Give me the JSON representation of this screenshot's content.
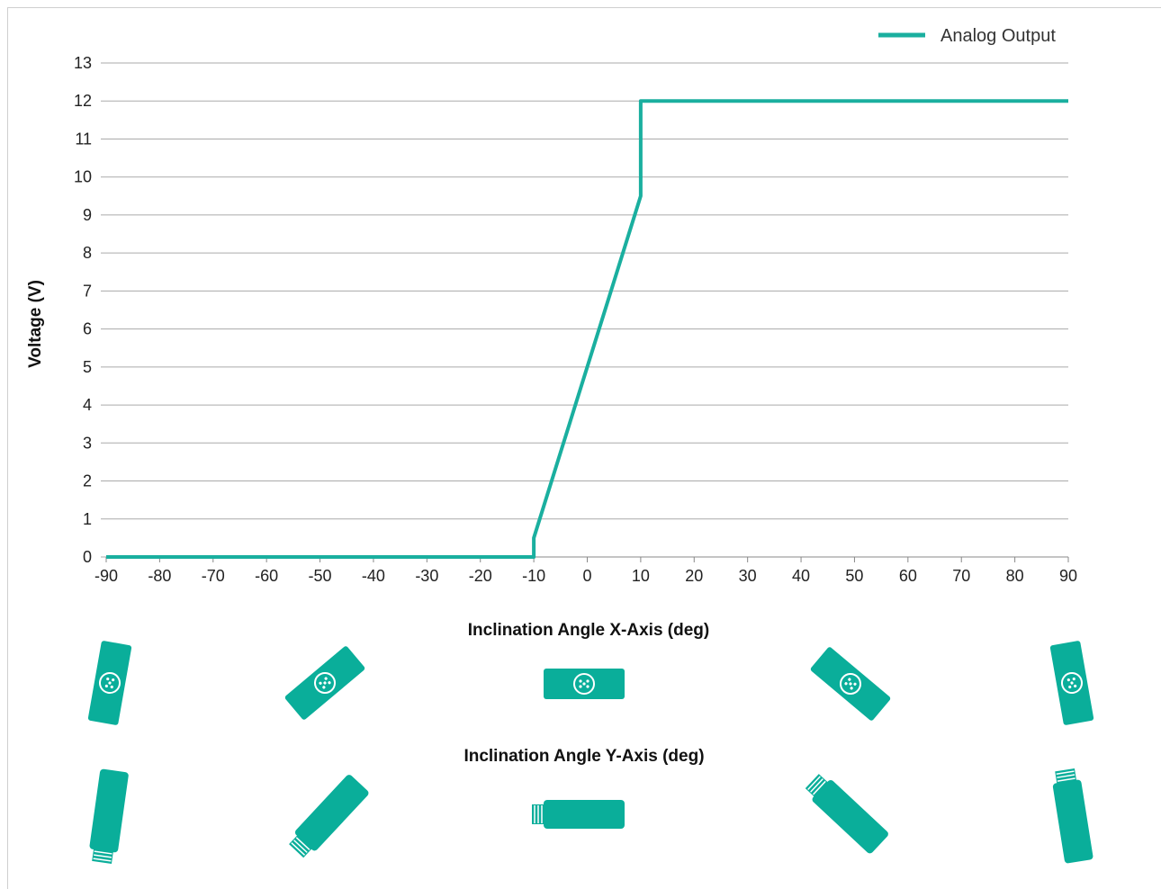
{
  "chart_data": {
    "type": "line",
    "xlabel": "Inclination Angle X-Axis (deg)",
    "x2label": "Inclination Angle Y-Axis (deg)",
    "ylabel": "Voltage (V)",
    "xlim": [
      -90,
      90
    ],
    "ylim": [
      0,
      13
    ],
    "xticks": [
      -90,
      -80,
      -70,
      -60,
      -50,
      -40,
      -30,
      -20,
      -10,
      0,
      10,
      20,
      30,
      40,
      50,
      60,
      70,
      80,
      90
    ],
    "yticks": [
      0,
      1,
      2,
      3,
      4,
      5,
      6,
      7,
      8,
      9,
      10,
      11,
      12,
      13
    ],
    "grid": "horizontal",
    "legend_position": "top-right",
    "series": [
      {
        "name": "Analog Output",
        "color": "#1aaf9f",
        "x": [
          -90,
          -10,
          -10,
          10,
          10,
          90
        ],
        "y": [
          0,
          0,
          0.5,
          9.5,
          12,
          12
        ]
      }
    ]
  },
  "colors": {
    "line": "#1aaf9f",
    "sensor": "#0aae9a",
    "grid": "#aaaaaa"
  },
  "sensor_icons": {
    "x_axis": {
      "icon": "sensor-top-view-icon",
      "angles": [
        -90,
        -45,
        0,
        45,
        90
      ]
    },
    "y_axis": {
      "icon": "sensor-side-view-icon",
      "angles": [
        -90,
        -45,
        0,
        45,
        90
      ]
    }
  }
}
